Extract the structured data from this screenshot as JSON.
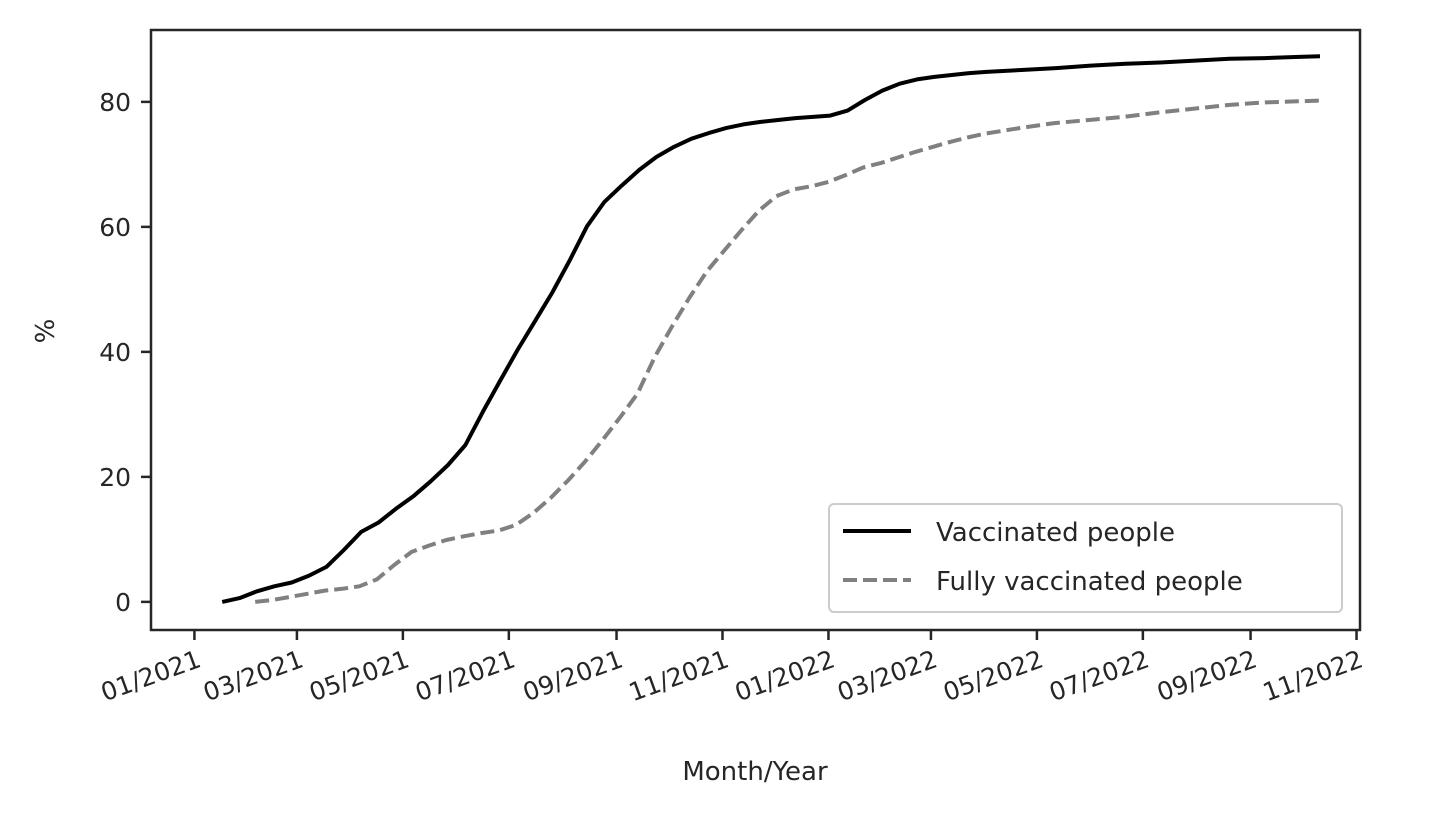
{
  "chart_data": {
    "type": "line",
    "title": "",
    "xlabel": "Month/Year",
    "ylabel": "%",
    "x_axis_type": "date",
    "xlim": [
      "2020-12-07",
      "2022-11-03"
    ],
    "ylim": [
      -4.5,
      91.5
    ],
    "x_ticks": [
      {
        "date": "2021-01-01",
        "label": "01/2021"
      },
      {
        "date": "2021-03-01",
        "label": "03/2021"
      },
      {
        "date": "2021-05-01",
        "label": "05/2021"
      },
      {
        "date": "2021-07-01",
        "label": "07/2021"
      },
      {
        "date": "2021-09-01",
        "label": "09/2021"
      },
      {
        "date": "2021-11-01",
        "label": "11/2021"
      },
      {
        "date": "2022-01-01",
        "label": "01/2022"
      },
      {
        "date": "2022-03-01",
        "label": "03/2022"
      },
      {
        "date": "2022-05-01",
        "label": "05/2022"
      },
      {
        "date": "2022-07-01",
        "label": "07/2022"
      },
      {
        "date": "2022-09-01",
        "label": "09/2022"
      },
      {
        "date": "2022-11-01",
        "label": "11/2022"
      }
    ],
    "y_ticks": [
      {
        "value": 0,
        "label": "0"
      },
      {
        "value": 20,
        "label": "20"
      },
      {
        "value": 40,
        "label": "40"
      },
      {
        "value": 60,
        "label": "60"
      },
      {
        "value": 80,
        "label": "80"
      }
    ],
    "grid": false,
    "legend_position": "lower-right",
    "series": [
      {
        "name": "Vaccinated people",
        "color": "#000000",
        "dash": "solid",
        "points": [
          [
            "2021-01-17",
            0
          ],
          [
            "2021-01-27",
            0.6
          ],
          [
            "2021-02-06",
            1.7
          ],
          [
            "2021-02-16",
            2.5
          ],
          [
            "2021-02-26",
            3.1
          ],
          [
            "2021-03-08",
            4.2
          ],
          [
            "2021-03-18",
            5.6
          ],
          [
            "2021-03-28",
            8.3
          ],
          [
            "2021-04-07",
            11.2
          ],
          [
            "2021-04-17",
            12.7
          ],
          [
            "2021-04-27",
            14.9
          ],
          [
            "2021-05-07",
            16.9
          ],
          [
            "2021-05-17",
            19.3
          ],
          [
            "2021-05-27",
            21.9
          ],
          [
            "2021-06-06",
            25.1
          ],
          [
            "2021-06-16",
            30.4
          ],
          [
            "2021-06-26",
            35.4
          ],
          [
            "2021-07-06",
            40.3
          ],
          [
            "2021-07-16",
            44.9
          ],
          [
            "2021-07-26",
            49.5
          ],
          [
            "2021-08-05",
            54.6
          ],
          [
            "2021-08-15",
            60.1
          ],
          [
            "2021-08-25",
            64.0
          ],
          [
            "2021-09-04",
            66.6
          ],
          [
            "2021-09-14",
            69.1
          ],
          [
            "2021-09-24",
            71.2
          ],
          [
            "2021-10-04",
            72.8
          ],
          [
            "2021-10-14",
            74.1
          ],
          [
            "2021-10-24",
            75.0
          ],
          [
            "2021-11-03",
            75.8
          ],
          [
            "2021-11-13",
            76.4
          ],
          [
            "2021-11-23",
            76.8
          ],
          [
            "2021-12-03",
            77.1
          ],
          [
            "2021-12-13",
            77.4
          ],
          [
            "2021-12-23",
            77.6
          ],
          [
            "2022-01-02",
            77.8
          ],
          [
            "2022-01-12",
            78.6
          ],
          [
            "2022-01-22",
            80.3
          ],
          [
            "2022-02-01",
            81.8
          ],
          [
            "2022-02-11",
            82.9
          ],
          [
            "2022-02-21",
            83.6
          ],
          [
            "2022-03-03",
            84.0
          ],
          [
            "2022-03-13",
            84.3
          ],
          [
            "2022-03-23",
            84.6
          ],
          [
            "2022-04-02",
            84.8
          ],
          [
            "2022-04-22",
            85.1
          ],
          [
            "2022-05-12",
            85.4
          ],
          [
            "2022-06-01",
            85.8
          ],
          [
            "2022-06-21",
            86.1
          ],
          [
            "2022-07-11",
            86.3
          ],
          [
            "2022-07-31",
            86.6
          ],
          [
            "2022-08-20",
            86.9
          ],
          [
            "2022-09-09",
            87.0
          ],
          [
            "2022-09-29",
            87.2
          ],
          [
            "2022-10-11",
            87.3
          ]
        ]
      },
      {
        "name": "Fully vaccinated people",
        "color": "#808080",
        "dash": "dashed",
        "points": [
          [
            "2021-02-05",
            0
          ],
          [
            "2021-02-15",
            0.3
          ],
          [
            "2021-02-25",
            0.8
          ],
          [
            "2021-03-07",
            1.3
          ],
          [
            "2021-03-17",
            1.8
          ],
          [
            "2021-03-27",
            2.1
          ],
          [
            "2021-04-06",
            2.5
          ],
          [
            "2021-04-16",
            3.6
          ],
          [
            "2021-04-26",
            5.9
          ],
          [
            "2021-05-06",
            8.0
          ],
          [
            "2021-05-16",
            9.0
          ],
          [
            "2021-05-26",
            9.9
          ],
          [
            "2021-06-05",
            10.5
          ],
          [
            "2021-06-15",
            11.0
          ],
          [
            "2021-06-25",
            11.4
          ],
          [
            "2021-07-05",
            12.3
          ],
          [
            "2021-07-15",
            14.2
          ],
          [
            "2021-07-25",
            16.6
          ],
          [
            "2021-08-04",
            19.4
          ],
          [
            "2021-08-14",
            22.5
          ],
          [
            "2021-08-24",
            25.9
          ],
          [
            "2021-09-03",
            29.5
          ],
          [
            "2021-09-13",
            33.3
          ],
          [
            "2021-09-23",
            39.2
          ],
          [
            "2021-10-03",
            44.1
          ],
          [
            "2021-10-13",
            48.7
          ],
          [
            "2021-10-23",
            52.9
          ],
          [
            "2021-11-02",
            56.2
          ],
          [
            "2021-11-12",
            59.5
          ],
          [
            "2021-11-22",
            62.6
          ],
          [
            "2021-12-02",
            64.9
          ],
          [
            "2021-12-12",
            66.0
          ],
          [
            "2021-12-22",
            66.5
          ],
          [
            "2022-01-01",
            67.2
          ],
          [
            "2022-01-11",
            68.3
          ],
          [
            "2022-01-21",
            69.5
          ],
          [
            "2022-01-31",
            70.2
          ],
          [
            "2022-02-10",
            71.1
          ],
          [
            "2022-02-20",
            72.0
          ],
          [
            "2022-03-02",
            72.8
          ],
          [
            "2022-03-12",
            73.6
          ],
          [
            "2022-03-22",
            74.3
          ],
          [
            "2022-04-01",
            74.9
          ],
          [
            "2022-04-21",
            75.8
          ],
          [
            "2022-05-11",
            76.6
          ],
          [
            "2022-05-31",
            77.1
          ],
          [
            "2022-06-20",
            77.6
          ],
          [
            "2022-07-10",
            78.3
          ],
          [
            "2022-07-30",
            78.9
          ],
          [
            "2022-08-19",
            79.5
          ],
          [
            "2022-09-08",
            79.9
          ],
          [
            "2022-09-28",
            80.1
          ],
          [
            "2022-10-11",
            80.2
          ]
        ]
      }
    ]
  }
}
